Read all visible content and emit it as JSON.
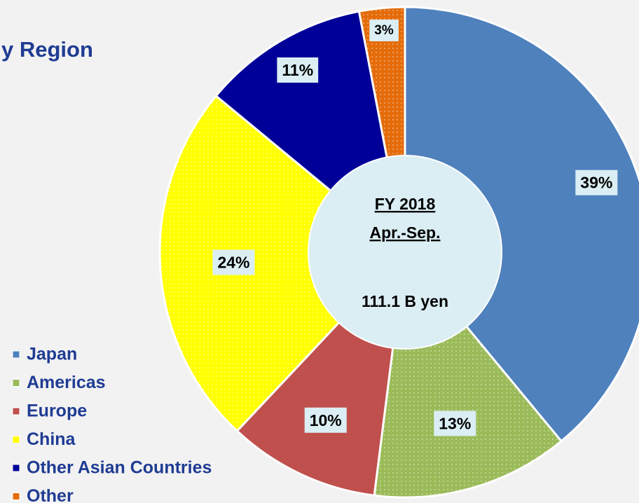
{
  "chart_data": {
    "type": "pie",
    "title": "y Region",
    "categories": [
      "Japan",
      "Americas",
      "Europe",
      "China",
      "Other Asian Countries",
      "Other"
    ],
    "values": [
      39,
      13,
      10,
      24,
      11,
      3
    ],
    "value_labels": [
      "39%",
      "13%",
      "10%",
      "24%",
      "11%",
      "3%"
    ],
    "colors": [
      "#4f81bd",
      "#9bbb59",
      "#c0504d",
      "#ffff00",
      "#000099",
      "#e46c0a"
    ],
    "annotations": [
      "FY 2018",
      "Apr.-Sep.",
      "111.1  B yen"
    ],
    "legend": "bottom-left"
  }
}
